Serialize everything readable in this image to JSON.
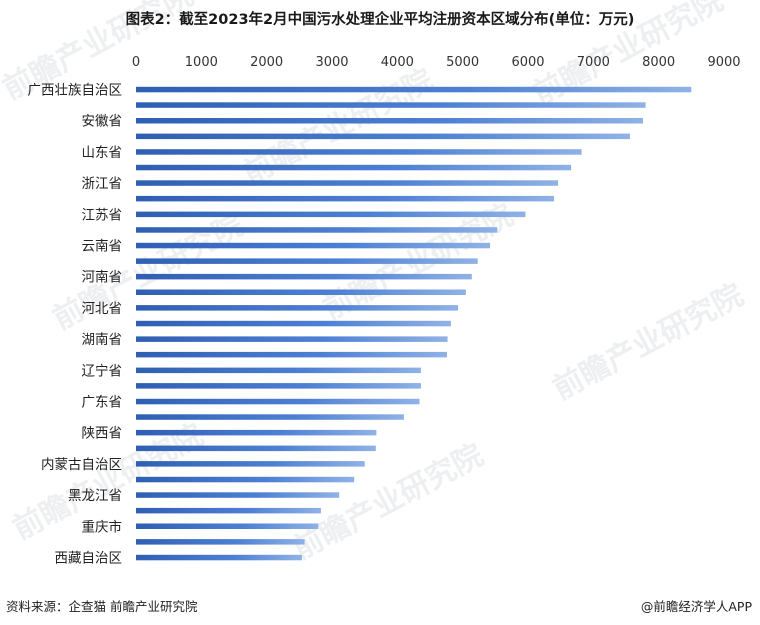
{
  "chart_data": {
    "type": "bar",
    "orientation": "horizontal",
    "title": "图表2：截至2023年2月中国污水处理企业平均注册资本区域分布(单位：万元)",
    "xlim": [
      0,
      9000
    ],
    "x_ticks": [
      "0",
      "1000",
      "2000",
      "3000",
      "4000",
      "5000",
      "6000",
      "7000",
      "8000",
      "9000"
    ],
    "x_tick_values": [
      0,
      1000,
      2000,
      3000,
      4000,
      5000,
      6000,
      7000,
      8000,
      9000
    ],
    "x_axis_position": "top",
    "bar_color": "#3a6cc0",
    "categories": [
      "广西壮族自治区",
      "",
      "安徽省",
      "",
      "山东省",
      "",
      "浙江省",
      "",
      "江苏省",
      "",
      "云南省",
      "",
      "河南省",
      "",
      "河北省",
      "",
      "湖南省",
      "",
      "辽宁省",
      "",
      "广东省",
      "",
      "陕西省",
      "",
      "内蒙古自治区",
      "",
      "黑龙江省",
      "",
      "重庆市",
      "",
      "西藏自治区"
    ],
    "values": [
      8500,
      7800,
      7760,
      7560,
      6820,
      6660,
      6460,
      6400,
      5960,
      5530,
      5420,
      5230,
      5140,
      5050,
      4930,
      4820,
      4770,
      4760,
      4360,
      4360,
      4340,
      4100,
      3680,
      3670,
      3500,
      3340,
      3110,
      2830,
      2790,
      2580,
      2540
    ],
    "grid": false
  },
  "footer": {
    "source": "资料来源：企查猫 前瞻产业研究院",
    "brand": "@前瞻经济学人APP"
  },
  "watermark": {
    "text": "前瞻产业研究院"
  }
}
